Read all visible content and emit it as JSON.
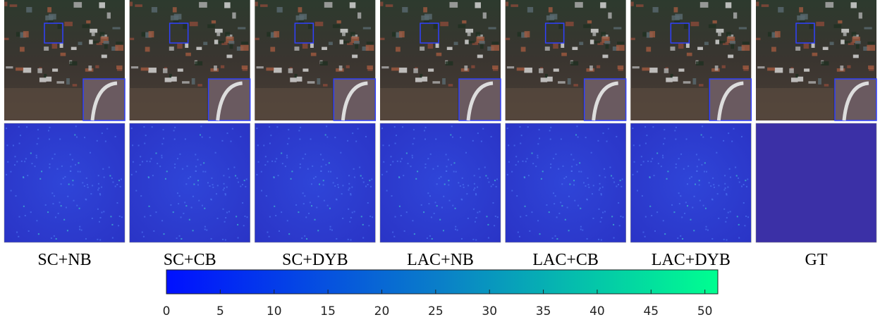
{
  "panels": [
    "SC+NB",
    "SC+CB",
    "SC+DYB",
    "LAC+NB",
    "LAC+CB",
    "LAC+DYB",
    "GT"
  ],
  "colorbar": {
    "lim": [
      0,
      51.2
    ],
    "ticks": [
      0,
      5,
      10,
      15,
      20,
      25,
      30,
      35,
      40,
      45,
      50
    ]
  }
}
